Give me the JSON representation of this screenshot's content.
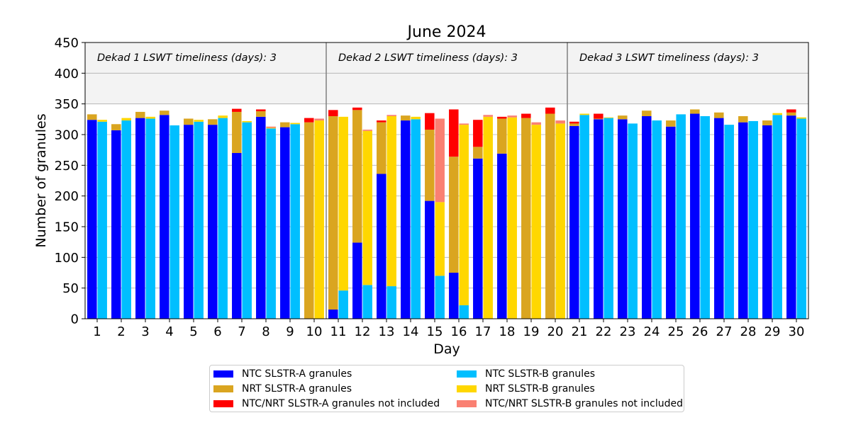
{
  "chart_data": {
    "type": "bar",
    "title": "June 2024",
    "xlabel": "Day",
    "ylabel": "Number of granules",
    "ylim": [
      0,
      450
    ],
    "yticks": [
      0,
      50,
      100,
      150,
      200,
      250,
      300,
      350,
      400,
      450
    ],
    "grid": true,
    "legend_position": "bottom-center",
    "categories": [
      "1",
      "2",
      "3",
      "4",
      "5",
      "6",
      "7",
      "8",
      "9",
      "10",
      "11",
      "12",
      "13",
      "14",
      "15",
      "16",
      "17",
      "18",
      "19",
      "20",
      "21",
      "22",
      "23",
      "24",
      "25",
      "26",
      "27",
      "28",
      "29",
      "30"
    ],
    "annotations": [
      {
        "label": "Dekad 1 LSWT timeliness (days): 3",
        "start_day": 1,
        "end_day": 10
      },
      {
        "label": "Dekad 2 LSWT timeliness (days): 3",
        "start_day": 11,
        "end_day": 20
      },
      {
        "label": "Dekad 3 LSWT timeliness (days): 3",
        "start_day": 21,
        "end_day": 30
      }
    ],
    "annotation_band": {
      "from": 350,
      "to": 450
    },
    "series": [
      {
        "name": "NTC SLSTR-A granules",
        "color": "#0000ff",
        "sensor": "A",
        "values": [
          324,
          307,
          327,
          332,
          316,
          316,
          270,
          329,
          312,
          0,
          15,
          124,
          236,
          323,
          192,
          75,
          261,
          269,
          0,
          0,
          314,
          325,
          325,
          330,
          313,
          334,
          327,
          320,
          315,
          331
        ]
      },
      {
        "name": "NRT SLSTR-A granules",
        "color": "#daa520",
        "sensor": "A",
        "values": [
          9,
          10,
          10,
          7,
          10,
          9,
          67,
          9,
          8,
          320,
          315,
          216,
          84,
          8,
          116,
          189,
          19,
          57,
          327,
          334,
          4,
          1,
          6,
          9,
          10,
          7,
          9,
          10,
          8,
          5
        ]
      },
      {
        "name": "NTC/NRT SLSTR-A granules not included",
        "color": "#ff0000",
        "sensor": "A",
        "values": [
          0,
          0,
          0,
          0,
          0,
          0,
          5,
          3,
          0,
          7,
          10,
          4,
          3,
          0,
          27,
          77,
          44,
          3,
          7,
          10,
          3,
          8,
          0,
          0,
          0,
          0,
          0,
          0,
          0,
          5
        ]
      },
      {
        "name": "NTC SLSTR-B granules",
        "color": "#00bfff",
        "sensor": "B",
        "values": [
          321,
          323,
          326,
          315,
          321,
          327,
          320,
          310,
          317,
          0,
          46,
          55,
          53,
          325,
          70,
          22,
          0,
          0,
          0,
          0,
          332,
          327,
          318,
          323,
          333,
          330,
          316,
          322,
          332,
          326
        ]
      },
      {
        "name": "NRT SLSTR-B granules",
        "color": "#ffd700",
        "sensor": "B",
        "values": [
          3,
          4,
          3,
          0,
          3,
          4,
          2,
          1,
          2,
          323,
          283,
          251,
          277,
          4,
          120,
          294,
          329,
          328,
          316,
          318,
          2,
          1,
          0,
          0,
          0,
          0,
          0,
          0,
          3,
          2
        ]
      },
      {
        "name": "NTC/NRT SLSTR-B granules not included",
        "color": "#fa8072",
        "sensor": "B",
        "values": [
          0,
          0,
          0,
          0,
          0,
          0,
          0,
          2,
          0,
          3,
          0,
          2,
          2,
          0,
          136,
          2,
          3,
          3,
          4,
          5,
          0,
          0,
          0,
          0,
          0,
          0,
          0,
          0,
          0,
          0
        ]
      }
    ]
  }
}
